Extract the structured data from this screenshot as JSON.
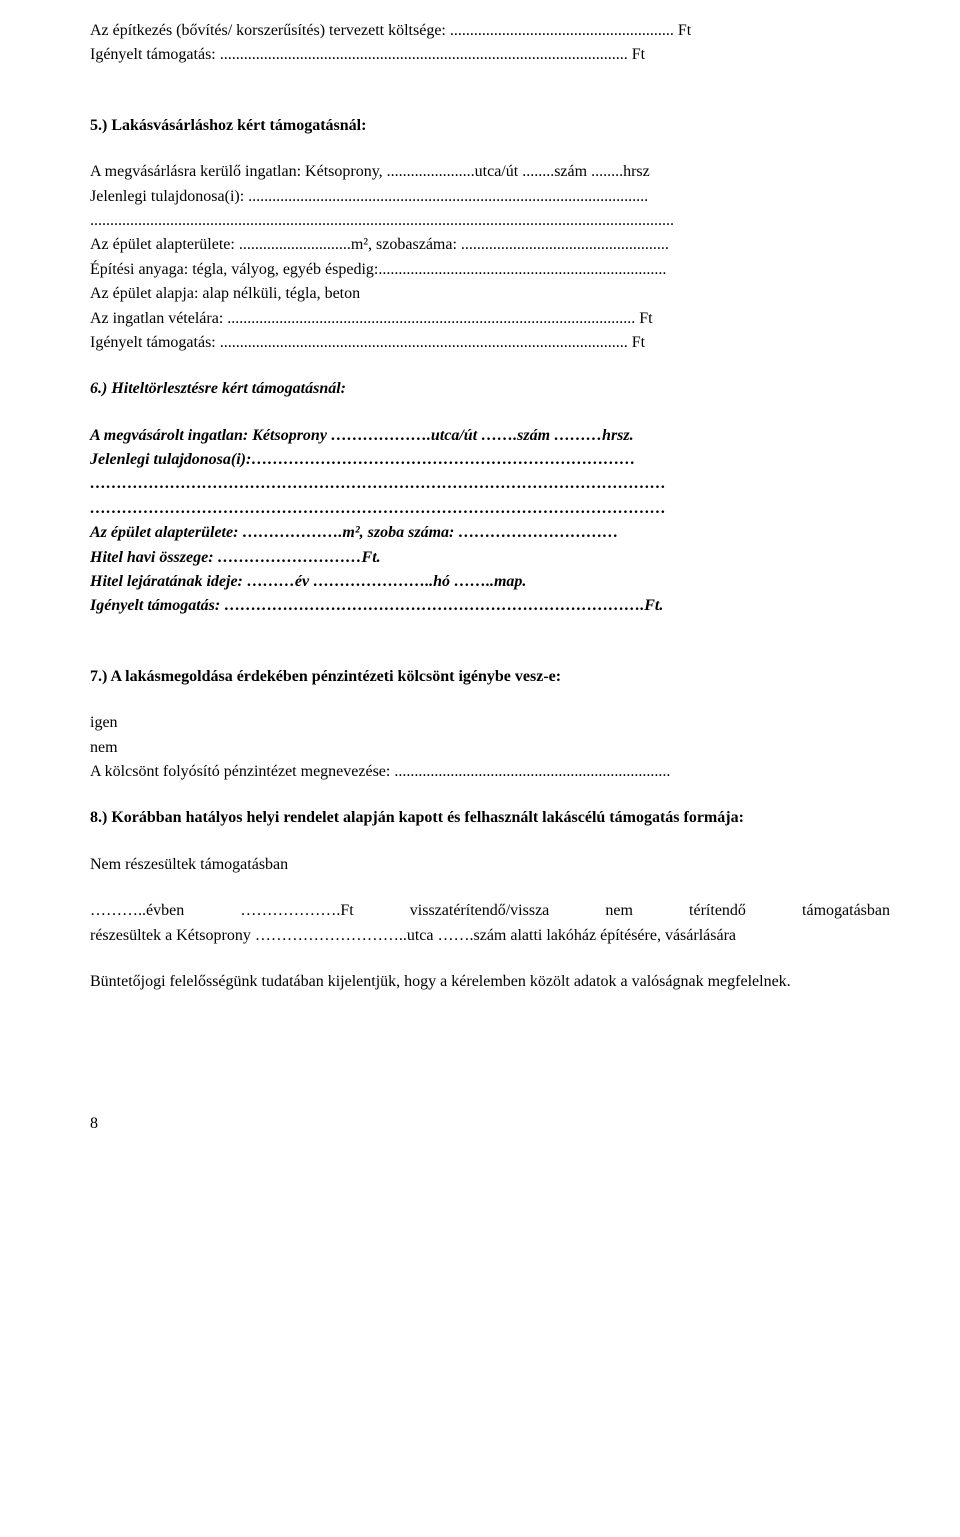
{
  "line1": "Az építkezés (bővítés/ korszerűsítés) tervezett költsége: ........................................................ Ft",
  "line2": "Igényelt támogatás: ...................................................................................................... Ft",
  "section5_heading": "5.) Lakásvásárláshoz kért támogatásnál:",
  "s5_line1": "A megvásárlásra kerülő ingatlan: Kétsoprony, ......................utca/út ........szám ........hrsz",
  "s5_line2": "Jelenlegi tulajdonosa(i): ....................................................................................................",
  "s5_line3": "..................................................................................................................................................",
  "s5_line4": "Az épület alapterülete: ............................m², szobaszáma: ....................................................",
  "s5_line5": "Építési anyaga: tégla, vályog, egyéb éspedig:........................................................................",
  "s5_line6": "Az épület alapja: alap nélküli, tégla, beton",
  "s5_line7": "Az ingatlan vételára: ...................................................................................................... Ft",
  "s5_line8": "Igényelt támogatás: ...................................................................................................... Ft",
  "section6_heading": "6.) Hiteltörlesztésre kért támogatásnál:",
  "s6_line1": "A megvásárolt ingatlan: Kétsoprony ……………….utca/út …….szám ………hrsz.",
  "s6_line2": "Jelenlegi tulajdonosa(i):………………………………………………………………",
  "s6_line3": "………………………………………………………………………………………………",
  "s6_line4": "………………………………………………………………………………………………",
  "s6_line5": "Az épület alapterülete: ……………….m², szoba száma: …………………………",
  "s6_line6": "Hitel havi összege: ………………………Ft.",
  "s6_line7": "Hitel lejáratának ideje: ………év …………………..hó ……..map.",
  "s6_line8": "Igényelt támogatás: …………………………………………………………………….Ft.",
  "section7_heading": "7.) A lakásmegoldása érdekében pénzintézeti kölcsönt igénybe vesz-e:",
  "s7_line1": "igen",
  "s7_line2": "nem",
  "s7_line3": "A kölcsönt folyósító pénzintézet megnevezése: .....................................................................",
  "section8_heading": "8.) Korábban hatályos helyi rendelet alapján kapott és felhasznált lakáscélú támogatás formája:",
  "s8_line1": "Nem részesültek támogatásban",
  "s8_line2a": "………..évben",
  "s8_line2b": "……………….Ft",
  "s8_line2c": "visszatérítendő/vissza",
  "s8_line2d": "nem",
  "s8_line2e": "térítendő",
  "s8_line2f": "támogatásban",
  "s8_line3": "részesültek a Kétsoprony ………………………..utca …….szám alatti lakóház építésére, vásárlására",
  "s8_line4": "Büntetőjogi felelősségünk tudatában kijelentjük, hogy a kérelemben közölt adatok a valóságnak megfelelnek.",
  "page_number": "8"
}
